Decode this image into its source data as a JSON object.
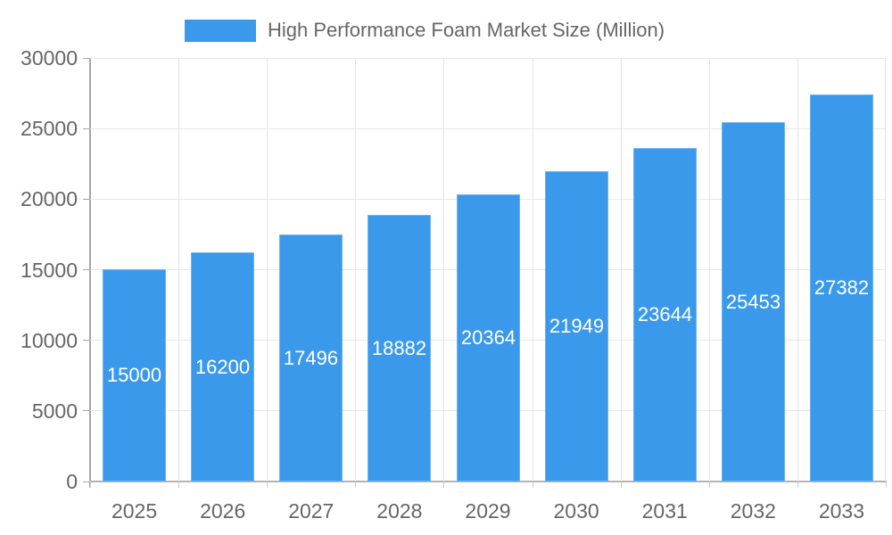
{
  "legend": {
    "label": "High Performance Foam Market Size (Million)"
  },
  "colors": {
    "bar": "#3b99ec",
    "axis_line": "#a6a6a6",
    "grid_line": "#e8e8e8",
    "tick_text": "#666666",
    "value_label": "#ffffff",
    "background": "#ffffff"
  },
  "chart_data": {
    "type": "bar",
    "title": "High Performance Foam Market Size (Million)",
    "categories": [
      "2025",
      "2026",
      "2027",
      "2028",
      "2029",
      "2030",
      "2031",
      "2032",
      "2033"
    ],
    "values": [
      15000,
      16200,
      17496,
      18882,
      20364,
      21949,
      23644,
      25453,
      27382
    ],
    "xlabel": "",
    "ylabel": "",
    "ylim": [
      0,
      30000
    ],
    "yticks": [
      0,
      5000,
      10000,
      15000,
      20000,
      25000,
      30000
    ],
    "grid": true,
    "legend_position": "top-center",
    "value_labels": "inside-center"
  }
}
